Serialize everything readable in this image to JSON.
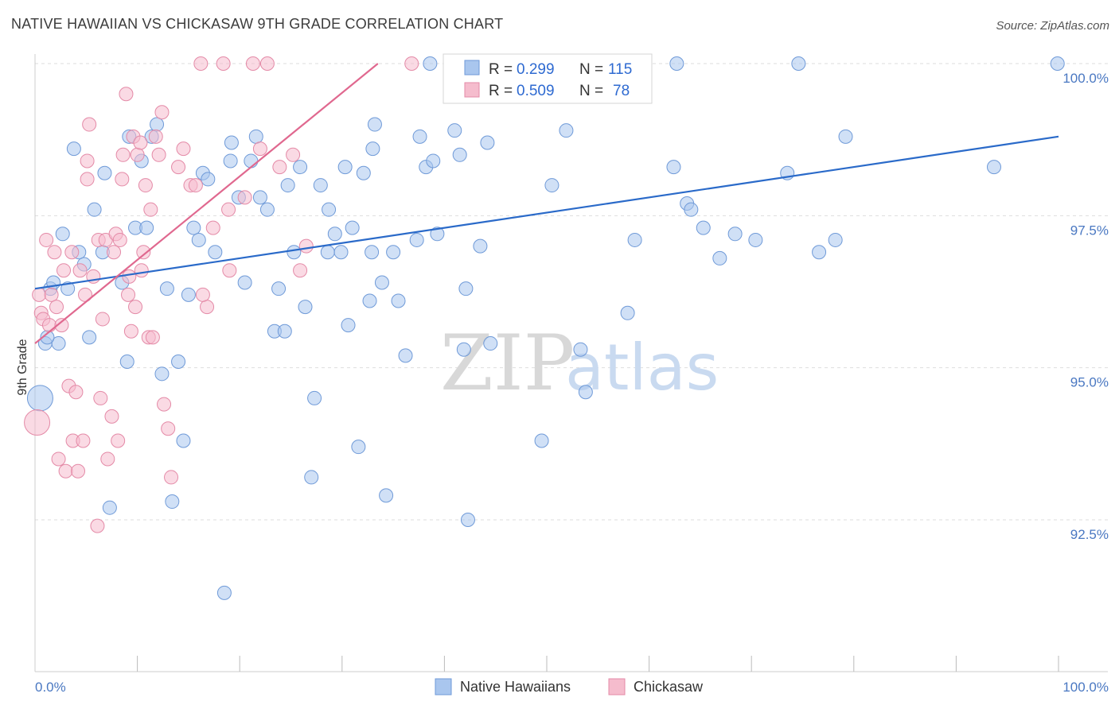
{
  "header": {
    "title": "NATIVE HAWAIIAN VS CHICKASAW 9TH GRADE CORRELATION CHART",
    "source": "Source: ZipAtlas.com"
  },
  "watermark": {
    "zip": "ZIP",
    "atlas": "atlas"
  },
  "legend": {
    "r_label": "R =",
    "n_label": "N =",
    "series": [
      {
        "r": "0.299",
        "n": "115"
      },
      {
        "r": "0.509",
        "n": "78"
      }
    ]
  },
  "bottom_legend": [
    "Native Hawaiians",
    "Chickasaw"
  ],
  "colors": {
    "blue_fill": "#a9c6ee",
    "blue_stroke": "#6f9ad8",
    "blue_line": "#2a6ac9",
    "pink_fill": "#f5bccd",
    "pink_stroke": "#e48aa7",
    "pink_line": "#e0688f",
    "grid": "#dddddd",
    "tick_text": "#4a78c2"
  },
  "chart_data": {
    "type": "scatter",
    "title": "NATIVE HAWAIIAN VS CHICKASAW 9TH GRADE CORRELATION CHART",
    "xlabel": "",
    "ylabel": "9th Grade",
    "xlim": [
      0,
      100
    ],
    "ylim": [
      90.0,
      100.2
    ],
    "x_tick_labels": [
      "0.0%",
      "100.0%"
    ],
    "y_ticks": [
      92.5,
      95.0,
      97.5,
      100.0
    ],
    "y_tick_labels": [
      "92.5%",
      "95.0%",
      "97.5%",
      "100.0%"
    ],
    "grid": true,
    "series": [
      {
        "name": "Native Hawaiians",
        "color": "#a9c6ee",
        "r": 0.299,
        "n": 115,
        "trend": [
          [
            0,
            96.3
          ],
          [
            100,
            98.8
          ]
        ],
        "points": [
          [
            0.5,
            94.5
          ],
          [
            1.0,
            95.4
          ],
          [
            1.5,
            96.3
          ],
          [
            1.8,
            96.4
          ],
          [
            2.3,
            95.4
          ],
          [
            2.7,
            97.2
          ],
          [
            3.2,
            96.3
          ],
          [
            3.8,
            98.6
          ],
          [
            4.3,
            96.9
          ],
          [
            4.8,
            96.7
          ],
          [
            5.3,
            95.5
          ],
          [
            5.8,
            97.6
          ],
          [
            6.6,
            96.9
          ],
          [
            6.8,
            98.2
          ],
          [
            7.3,
            92.7
          ],
          [
            8.5,
            96.4
          ],
          [
            9.0,
            95.1
          ],
          [
            9.2,
            98.8
          ],
          [
            9.8,
            97.3
          ],
          [
            10.4,
            98.4
          ],
          [
            10.9,
            97.3
          ],
          [
            11.4,
            98.8
          ],
          [
            11.9,
            99.0
          ],
          [
            12.4,
            94.9
          ],
          [
            12.9,
            96.3
          ],
          [
            13.4,
            92.8
          ],
          [
            14.0,
            95.1
          ],
          [
            14.5,
            93.8
          ],
          [
            15.0,
            96.2
          ],
          [
            15.5,
            97.3
          ],
          [
            16.0,
            97.1
          ],
          [
            16.4,
            98.2
          ],
          [
            16.9,
            98.1
          ],
          [
            17.6,
            96.9
          ],
          [
            18.5,
            91.3
          ],
          [
            19.1,
            98.4
          ],
          [
            19.2,
            98.7
          ],
          [
            19.9,
            97.8
          ],
          [
            20.5,
            96.4
          ],
          [
            21.1,
            98.4
          ],
          [
            21.6,
            98.8
          ],
          [
            22.0,
            97.8
          ],
          [
            22.7,
            97.6
          ],
          [
            23.4,
            95.6
          ],
          [
            23.8,
            96.3
          ],
          [
            24.4,
            95.6
          ],
          [
            24.7,
            98.0
          ],
          [
            25.3,
            96.9
          ],
          [
            25.9,
            98.3
          ],
          [
            26.4,
            96.0
          ],
          [
            27.0,
            93.2
          ],
          [
            27.3,
            94.5
          ],
          [
            27.9,
            98.0
          ],
          [
            28.6,
            96.9
          ],
          [
            28.7,
            97.6
          ],
          [
            29.3,
            97.2
          ],
          [
            29.9,
            96.9
          ],
          [
            30.3,
            98.3
          ],
          [
            30.6,
            95.7
          ],
          [
            31.0,
            97.3
          ],
          [
            31.6,
            93.7
          ],
          [
            32.1,
            98.2
          ],
          [
            32.7,
            96.1
          ],
          [
            32.9,
            96.9
          ],
          [
            33.0,
            98.6
          ],
          [
            33.2,
            99.0
          ],
          [
            33.9,
            96.4
          ],
          [
            34.3,
            92.9
          ],
          [
            35.0,
            96.9
          ],
          [
            35.5,
            96.1
          ],
          [
            36.2,
            95.2
          ],
          [
            37.3,
            97.1
          ],
          [
            37.6,
            98.8
          ],
          [
            38.2,
            98.3
          ],
          [
            38.9,
            98.4
          ],
          [
            39.3,
            97.2
          ],
          [
            41.0,
            98.9
          ],
          [
            41.5,
            98.5
          ],
          [
            41.9,
            95.3
          ],
          [
            42.1,
            96.3
          ],
          [
            42.3,
            92.5
          ],
          [
            43.5,
            97.0
          ],
          [
            44.2,
            98.7
          ],
          [
            44.5,
            95.4
          ],
          [
            49.5,
            93.8
          ],
          [
            50.5,
            98.0
          ],
          [
            51.9,
            98.9
          ],
          [
            53.8,
            94.6
          ],
          [
            53.3,
            95.3
          ],
          [
            57.8,
            100.0
          ],
          [
            57.9,
            95.9
          ],
          [
            58.6,
            97.1
          ],
          [
            62.7,
            100.0
          ],
          [
            62.4,
            98.3
          ],
          [
            63.7,
            97.7
          ],
          [
            64.1,
            97.6
          ],
          [
            65.3,
            97.3
          ],
          [
            66.9,
            96.8
          ],
          [
            68.4,
            97.2
          ],
          [
            70.4,
            97.1
          ],
          [
            73.5,
            98.2
          ],
          [
            74.6,
            100.0
          ],
          [
            76.6,
            96.9
          ],
          [
            78.2,
            97.1
          ],
          [
            79.2,
            98.8
          ],
          [
            93.7,
            98.3
          ],
          [
            99.9,
            100.0
          ],
          [
            44.0,
            100.0
          ],
          [
            47.3,
            100.0
          ],
          [
            53.0,
            100.0
          ],
          [
            55.4,
            100.0
          ],
          [
            38.6,
            100.0
          ],
          [
            58.0,
            100.0
          ],
          [
            55.0,
            100.0
          ],
          [
            1.2,
            95.5
          ]
        ]
      },
      {
        "name": "Chickasaw",
        "color": "#f5bccd",
        "r": 0.509,
        "n": 78,
        "trend": [
          [
            0,
            95.4
          ],
          [
            33.5,
            100.0
          ]
        ],
        "points": [
          [
            0.2,
            94.1
          ],
          [
            0.4,
            96.2
          ],
          [
            0.6,
            95.9
          ],
          [
            0.8,
            95.8
          ],
          [
            1.1,
            97.1
          ],
          [
            1.4,
            95.7
          ],
          [
            1.6,
            96.2
          ],
          [
            1.9,
            96.9
          ],
          [
            2.1,
            96.0
          ],
          [
            2.3,
            93.5
          ],
          [
            2.6,
            95.7
          ],
          [
            2.8,
            96.6
          ],
          [
            3.0,
            93.3
          ],
          [
            3.3,
            94.7
          ],
          [
            3.6,
            96.9
          ],
          [
            3.7,
            93.8
          ],
          [
            4.0,
            94.6
          ],
          [
            4.2,
            93.3
          ],
          [
            4.4,
            96.6
          ],
          [
            4.7,
            93.8
          ],
          [
            4.9,
            96.2
          ],
          [
            5.1,
            98.1
          ],
          [
            5.1,
            98.4
          ],
          [
            5.3,
            99.0
          ],
          [
            5.7,
            96.5
          ],
          [
            6.1,
            92.4
          ],
          [
            6.2,
            97.1
          ],
          [
            6.4,
            94.5
          ],
          [
            6.6,
            95.8
          ],
          [
            6.9,
            97.1
          ],
          [
            7.1,
            93.5
          ],
          [
            7.5,
            94.2
          ],
          [
            7.7,
            96.9
          ],
          [
            7.9,
            97.2
          ],
          [
            8.1,
            93.8
          ],
          [
            8.3,
            97.1
          ],
          [
            8.5,
            98.1
          ],
          [
            8.6,
            98.5
          ],
          [
            8.9,
            99.5
          ],
          [
            9.1,
            96.2
          ],
          [
            9.2,
            96.5
          ],
          [
            9.4,
            95.6
          ],
          [
            9.6,
            98.8
          ],
          [
            9.8,
            96.0
          ],
          [
            10.0,
            98.5
          ],
          [
            10.3,
            98.7
          ],
          [
            10.6,
            96.9
          ],
          [
            10.8,
            98.0
          ],
          [
            11.1,
            95.5
          ],
          [
            11.3,
            97.6
          ],
          [
            11.5,
            95.5
          ],
          [
            11.8,
            98.8
          ],
          [
            12.1,
            98.5
          ],
          [
            12.6,
            94.4
          ],
          [
            13.0,
            94.0
          ],
          [
            13.3,
            93.2
          ],
          [
            14.0,
            98.3
          ],
          [
            14.5,
            98.6
          ],
          [
            15.2,
            98.0
          ],
          [
            15.7,
            98.0
          ],
          [
            16.2,
            100.0
          ],
          [
            16.8,
            96.0
          ],
          [
            17.4,
            97.3
          ],
          [
            18.4,
            100.0
          ],
          [
            18.9,
            97.6
          ],
          [
            19.0,
            96.6
          ],
          [
            20.5,
            97.8
          ],
          [
            21.3,
            100.0
          ],
          [
            22.0,
            98.6
          ],
          [
            22.7,
            100.0
          ],
          [
            23.9,
            98.3
          ],
          [
            25.2,
            98.5
          ],
          [
            25.9,
            96.6
          ],
          [
            26.5,
            97.0
          ],
          [
            36.8,
            100.0
          ],
          [
            10.4,
            96.6
          ],
          [
            12.4,
            99.2
          ],
          [
            16.4,
            96.2
          ]
        ]
      }
    ]
  }
}
